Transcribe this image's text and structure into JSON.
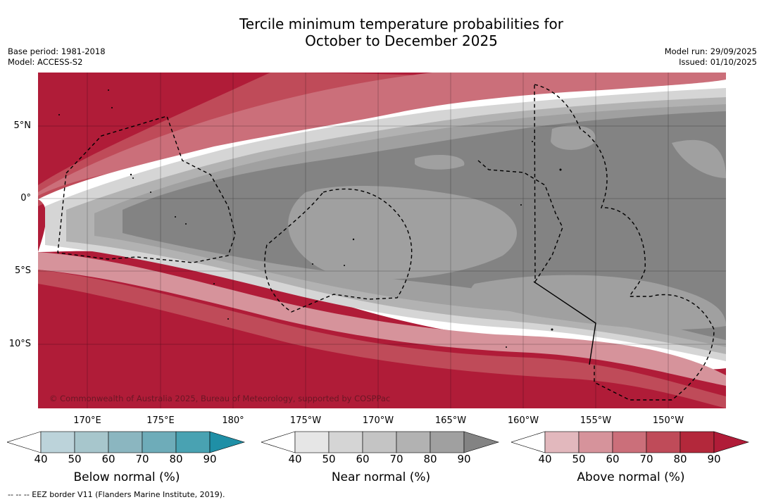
{
  "title_line1": "Tercile minimum temperature probabilities for",
  "title_line2": "October to December 2025",
  "base_period": "Base period: 1981-2018",
  "model": "Model: ACCESS-S2",
  "model_run": "Model run: 29/09/2025",
  "issued": "Issued: 01/10/2025",
  "lat_labels": [
    "5°N",
    "0°",
    "5°S",
    "10°S"
  ],
  "lon_labels": [
    "170°E",
    "175°E",
    "180°",
    "175°W",
    "170°W",
    "165°W",
    "160°W",
    "155°W",
    "150°W"
  ],
  "copyright": "© Commonwealth of Australia 2025, Bureau of Meteorology, supported by COSPPac",
  "colorbars": [
    {
      "title": "Below normal (%)",
      "ticks": [
        "40",
        "50",
        "60",
        "70",
        "80",
        "90"
      ],
      "colors": [
        "#ffffff",
        "#bcd3da",
        "#a7c6cc",
        "#8bb6c0",
        "#6eacb9",
        "#49a2b2",
        "#1f8fa6"
      ]
    },
    {
      "title": "Near normal (%)",
      "ticks": [
        "40",
        "50",
        "60",
        "70",
        "80",
        "90"
      ],
      "colors": [
        "#ffffff",
        "#e6e6e6",
        "#d5d5d5",
        "#c4c4c4",
        "#b2b2b2",
        "#a0a0a0",
        "#838383"
      ]
    },
    {
      "title": "Above normal (%)",
      "ticks": [
        "40",
        "50",
        "60",
        "70",
        "80",
        "90"
      ],
      "colors": [
        "#ffffff",
        "#e2b8bd",
        "#d6939b",
        "#cb6f7a",
        "#bf4b59",
        "#b3283b",
        "#b01c38"
      ]
    }
  ],
  "eez_note": "-- -- -- EEZ border V11 (Flanders Marine Institute, 2019)."
}
